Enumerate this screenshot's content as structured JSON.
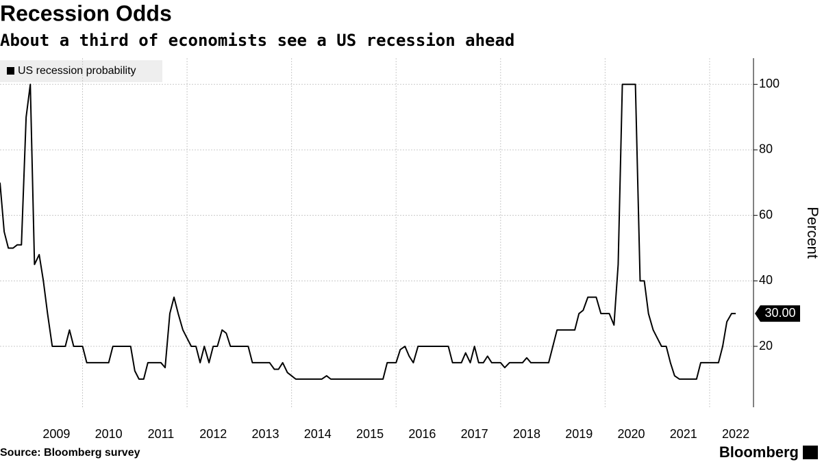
{
  "chart_data": {
    "type": "line",
    "title": "Recession Odds",
    "subtitle": "About a third of economists see a US recession ahead",
    "y_label": "Percent",
    "source": "Source: Bloomberg survey",
    "brand": "Bloomberg",
    "end_label": "30.00",
    "x": [
      2008.42,
      2008.5,
      2008.58,
      2008.67,
      2008.75,
      2008.83,
      2008.92,
      2009,
      2009.08,
      2009.17,
      2009.25,
      2009.33,
      2009.42,
      2009.5,
      2009.58,
      2009.67,
      2009.75,
      2009.83,
      2009.92,
      2010,
      2010.08,
      2010.17,
      2010.25,
      2010.33,
      2010.42,
      2010.5,
      2010.58,
      2010.67,
      2010.75,
      2010.83,
      2010.92,
      2011,
      2011.08,
      2011.17,
      2011.25,
      2011.33,
      2011.42,
      2011.5,
      2011.58,
      2011.67,
      2011.75,
      2011.83,
      2011.92,
      2012,
      2012.08,
      2012.17,
      2012.25,
      2012.33,
      2012.42,
      2012.5,
      2012.58,
      2012.67,
      2012.75,
      2012.83,
      2012.92,
      2013,
      2013.08,
      2013.17,
      2013.25,
      2013.33,
      2013.42,
      2013.5,
      2013.58,
      2013.67,
      2013.75,
      2013.83,
      2013.92,
      2014,
      2014.08,
      2014.17,
      2014.25,
      2014.33,
      2014.42,
      2014.5,
      2014.58,
      2014.67,
      2014.75,
      2014.83,
      2014.92,
      2015,
      2015.08,
      2015.17,
      2015.25,
      2015.33,
      2015.42,
      2015.5,
      2015.58,
      2015.67,
      2015.75,
      2015.83,
      2015.92,
      2016,
      2016.08,
      2016.17,
      2016.25,
      2016.33,
      2016.42,
      2016.5,
      2016.58,
      2016.67,
      2016.75,
      2016.83,
      2016.92,
      2017,
      2017.08,
      2017.17,
      2017.25,
      2017.33,
      2017.42,
      2017.5,
      2017.58,
      2017.67,
      2017.75,
      2017.83,
      2017.92,
      2018,
      2018.08,
      2018.17,
      2018.25,
      2018.33,
      2018.42,
      2018.5,
      2018.58,
      2018.67,
      2018.75,
      2018.83,
      2018.92,
      2019,
      2019.08,
      2019.17,
      2019.25,
      2019.33,
      2019.42,
      2019.5,
      2019.58,
      2019.67,
      2019.75,
      2019.83,
      2019.92,
      2020,
      2020.08,
      2020.17,
      2020.25,
      2020.33,
      2020.42,
      2020.5,
      2020.58,
      2020.67,
      2020.75,
      2020.83,
      2020.92,
      2021,
      2021.08,
      2021.17,
      2021.25,
      2021.33,
      2021.42,
      2021.5,
      2021.58,
      2021.67,
      2021.75,
      2021.83,
      2021.92,
      2022,
      2022.08,
      2022.17,
      2022.25,
      2022.33,
      2022.42,
      2022.5
    ],
    "series": [
      {
        "name": "US recession probability",
        "color": "#000000",
        "values": [
          70,
          55,
          50,
          50,
          51,
          51,
          90,
          100,
          45,
          48,
          40,
          30,
          20,
          20,
          20,
          20,
          25,
          20,
          20,
          20,
          15,
          15,
          15,
          15,
          15,
          15,
          20,
          20,
          20,
          20,
          20,
          12.5,
          10,
          10,
          15,
          15,
          15,
          15,
          13.5,
          30,
          35,
          30,
          25,
          22.5,
          20,
          20,
          15,
          20,
          15,
          20,
          20,
          25,
          24,
          20,
          20,
          20,
          20,
          20,
          15,
          15,
          15,
          15,
          15,
          13,
          13,
          15,
          12,
          11,
          10,
          10,
          10,
          10,
          10,
          10,
          10,
          11,
          10,
          10,
          10,
          10,
          10,
          10,
          10,
          10,
          10,
          10,
          10,
          10,
          10,
          15,
          15,
          15,
          19,
          20,
          17,
          15,
          20,
          20,
          20,
          20,
          20,
          20,
          20,
          20,
          15,
          15,
          15,
          18,
          15,
          20,
          15,
          15,
          17,
          15,
          15,
          15,
          13.5,
          15,
          15,
          15,
          15,
          16.5,
          15,
          15,
          15,
          15,
          15,
          20,
          25,
          25,
          25,
          25,
          25,
          30,
          31,
          35,
          35,
          35,
          30,
          30,
          30,
          26.5,
          45,
          100,
          100,
          100,
          100,
          40,
          40,
          30,
          25,
          22.5,
          20,
          20,
          15,
          11,
          10,
          10,
          10,
          10,
          10,
          15,
          15,
          15,
          15,
          15,
          20,
          27.5,
          30,
          30
        ]
      }
    ],
    "xlim": [
      2008.42,
      2022.84
    ],
    "xticks": [
      {
        "value": 2009.5,
        "label": "2009"
      },
      {
        "value": 2010.5,
        "label": "2010"
      },
      {
        "value": 2011.5,
        "label": "2011"
      },
      {
        "value": 2012.5,
        "label": "2012"
      },
      {
        "value": 2013.5,
        "label": "2013"
      },
      {
        "value": 2014.5,
        "label": "2014"
      },
      {
        "value": 2015.5,
        "label": "2015"
      },
      {
        "value": 2016.5,
        "label": "2016"
      },
      {
        "value": 2017.5,
        "label": "2017"
      },
      {
        "value": 2018.5,
        "label": "2018"
      },
      {
        "value": 2019.5,
        "label": "2019"
      },
      {
        "value": 2020.5,
        "label": "2020"
      },
      {
        "value": 2021.5,
        "label": "2021"
      },
      {
        "value": 2022.5,
        "label": "2022"
      }
    ],
    "xgrid": [
      2010,
      2012,
      2014,
      2016,
      2018,
      2020,
      2022
    ],
    "ylim": [
      1.4,
      108
    ],
    "yticks": [
      20,
      40,
      60,
      80,
      100
    ],
    "grid": true,
    "legend": "top-left"
  }
}
